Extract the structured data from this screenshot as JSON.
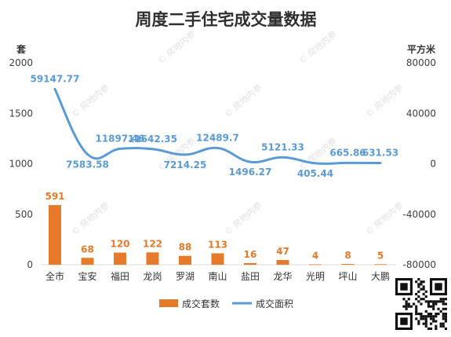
{
  "chart_data": {
    "type": "bar",
    "title": "周度二手住宅成交量数据",
    "categories": [
      "全市",
      "宝安",
      "福田",
      "龙岗",
      "罗湖",
      "南山",
      "盐田",
      "龙华",
      "光明",
      "坪山",
      "大鹏"
    ],
    "series": [
      {
        "name": "成交套数",
        "type": "bar",
        "axis": "left",
        "values": [
          591,
          68,
          120,
          122,
          88,
          113,
          16,
          47,
          4,
          8,
          5
        ],
        "color": "#e57a2a"
      },
      {
        "name": "成交面积",
        "type": "line",
        "axis": "right",
        "values": [
          59147.77,
          7583.58,
          11897.46,
          11642.35,
          7214.25,
          12489.7,
          1496.27,
          5121.33,
          405.44,
          665.86,
          631.53
        ],
        "color": "#5b9bd5"
      }
    ],
    "left_axis": {
      "unit": "套",
      "ylim": [
        0,
        2000
      ],
      "ticks": [
        "0",
        "500",
        "1000",
        "1500",
        "2000"
      ]
    },
    "right_axis": {
      "unit": "平方米",
      "ylim": [
        -80000,
        80000
      ],
      "ticks": [
        "-80000",
        "-40000",
        "0",
        "40000",
        "80000"
      ]
    },
    "grid": false,
    "legend_position": "bottom",
    "watermark": "房地内参"
  }
}
